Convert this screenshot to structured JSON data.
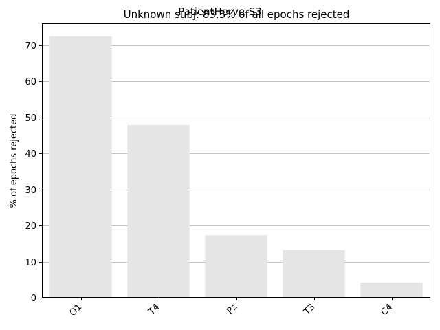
{
  "suptitle": "PatientHerve-S3",
  "chart_data": {
    "type": "bar",
    "title": "Unknown subj: 83.3% of all epochs rejected",
    "xlabel": "",
    "ylabel": "% of epochs rejected",
    "categories": [
      "O1",
      "T4",
      "Pz",
      "T3",
      "C4"
    ],
    "values": [
      72.4,
      47.8,
      17.3,
      13.2,
      4.2
    ],
    "ylim": [
      0,
      76
    ],
    "yticks": [
      0,
      10,
      20,
      30,
      40,
      50,
      60,
      70
    ],
    "grid": "y-axis horizontal lines",
    "bar_color": "#e5e5e5",
    "grid_color": "#b0b0b0"
  }
}
